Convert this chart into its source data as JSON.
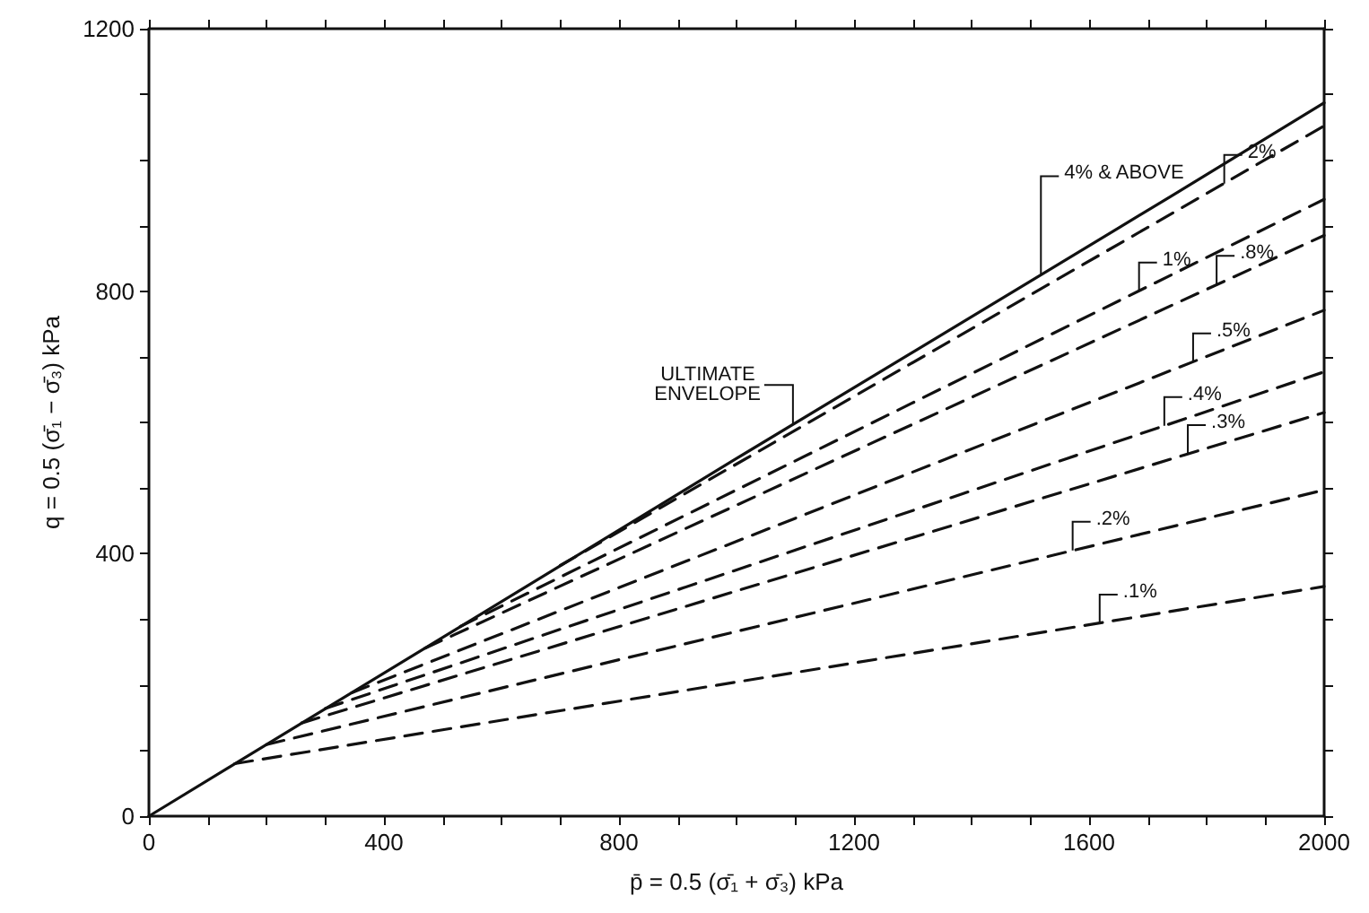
{
  "chart_data": {
    "type": "line",
    "xlabel": "p̄ = 0.5 (σ̄₁ + σ̄₃) kPa",
    "ylabel": "q = 0.5 (σ̄₁ − σ̄₃) kPa",
    "xlim": [
      0,
      2000
    ],
    "ylim": [
      0,
      1200
    ],
    "xticks": [
      0,
      {
        "value": 100,
        "label": null
      },
      400,
      {
        "value": 200,
        "label": null
      },
      {
        "value": 300,
        "label": null
      },
      {
        "value": 500,
        "label": null
      },
      {
        "value": 600,
        "label": null
      },
      {
        "value": 700,
        "label": null
      },
      800,
      {
        "value": 900,
        "label": null
      },
      {
        "value": 1000,
        "label": null
      },
      {
        "value": 1100,
        "label": null
      },
      1200,
      {
        "value": 1300,
        "label": null
      },
      {
        "value": 1400,
        "label": null
      },
      {
        "value": 1500,
        "label": null
      },
      1600,
      {
        "value": 1700,
        "label": null
      },
      {
        "value": 1800,
        "label": null
      },
      {
        "value": 1900,
        "label": null
      },
      2000
    ],
    "yticks": [
      0,
      {
        "value": 100,
        "label": null
      },
      {
        "value": 200,
        "label": null
      },
      {
        "value": 300,
        "label": null
      },
      400,
      {
        "value": 500,
        "label": null
      },
      {
        "value": 600,
        "label": null
      },
      {
        "value": 700,
        "label": null
      },
      800,
      {
        "value": 900,
        "label": null
      },
      {
        "value": 1000,
        "label": null
      },
      {
        "value": 1100,
        "label": null
      },
      1200
    ],
    "grid": false,
    "marker": "none",
    "series": [
      {
        "color": "#111111",
        "line_style": "solid",
        "x": [
          0,
          1000,
          1500,
          1740,
          2000
        ],
        "values": [
          0,
          545,
          815,
          945,
          1087
        ]
      },
      {
        "color": "#111111",
        "line_style": "dashed",
        "x": [
          700,
          2000
        ],
        "values": [
          382,
          1052
        ]
      },
      {
        "color": "#111111",
        "line_style": "dashed",
        "x": [
          530,
          2000
        ],
        "values": [
          289,
          940
        ]
      },
      {
        "color": "#111111",
        "line_style": "dashed",
        "x": [
          470,
          2000
        ],
        "values": [
          256,
          885
        ]
      },
      {
        "color": "#111111",
        "line_style": "dashed",
        "x": [
          345,
          2000
        ],
        "values": [
          188,
          771
        ]
      },
      {
        "color": "#111111",
        "line_style": "dashed",
        "x": [
          300,
          2000
        ],
        "values": [
          164,
          677
        ]
      },
      {
        "color": "#111111",
        "line_style": "dashed",
        "x": [
          260,
          2000
        ],
        "values": [
          142,
          615
        ]
      },
      {
        "color": "#111111",
        "line_style": "dashed",
        "x": [
          200,
          2000
        ],
        "values": [
          109,
          497
        ]
      },
      {
        "color": "#111111",
        "line_style": "dashed",
        "x": [
          146,
          2000
        ],
        "values": [
          80,
          350
        ]
      }
    ],
    "annotations": [
      {
        "text": "ULTIMATE ENVELOPE",
        "x": 1096,
        "y": 597
      },
      {
        "text": "4% & ABOVE",
        "x": 1518,
        "y": 825
      },
      {
        "text": "2%",
        "x": 1830,
        "y": 964
      },
      {
        "text": "1%",
        "x": 1685,
        "y": 800
      },
      {
        "text": ".8%",
        "x": 1817,
        "y": 810
      },
      {
        "text": ".5%",
        "x": 1777,
        "y": 692
      },
      {
        "text": ".4%",
        "x": 1728,
        "y": 595
      },
      {
        "text": ".3%",
        "x": 1768,
        "y": 552
      },
      {
        "text": ".2%",
        "x": 1572,
        "y": 405
      },
      {
        "text": ".1%",
        "x": 1618,
        "y": 294
      }
    ]
  }
}
